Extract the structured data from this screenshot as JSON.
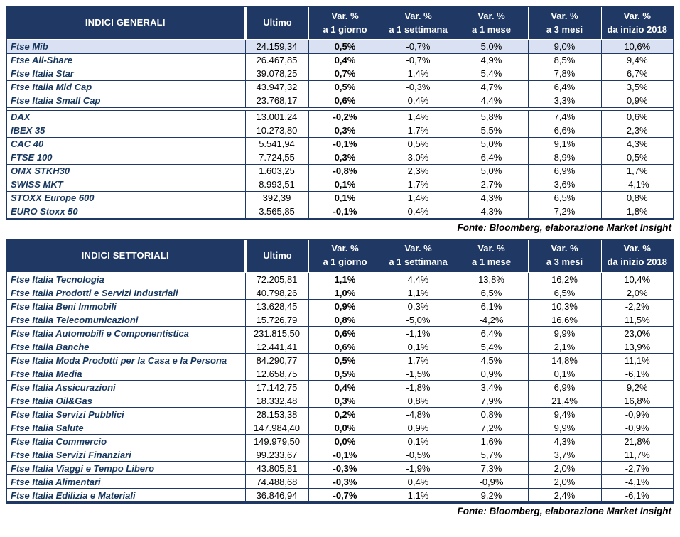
{
  "source_note": "Fonte: Bloomberg, elaborazione Market Insight",
  "colors": {
    "header_bg": "#1F3864",
    "border": "#1F3864",
    "highlight_row": "#D9E1F2",
    "index_name_text": "#17375E"
  },
  "columns": {
    "ultimo": "Ultimo",
    "var": [
      {
        "l1": "Var. %",
        "l2": "a 1 giorno"
      },
      {
        "l1": "Var. %",
        "l2": "a 1 settimana"
      },
      {
        "l1": "Var. %",
        "l2": "a 1 mese"
      },
      {
        "l1": "Var. %",
        "l2": "a 3 mesi"
      },
      {
        "l1": "Var. %",
        "l2": "da inizio 2018"
      }
    ]
  },
  "general": {
    "title": "INDICI GENERALI",
    "italy_rows": [
      {
        "name": "Ftse Mib",
        "ultimo": "24.159,34",
        "values": [
          "0,5%",
          "-0,7%",
          "5,0%",
          "9,0%",
          "10,6%"
        ],
        "highlight": true
      },
      {
        "name": "Ftse All-Share",
        "ultimo": "26.467,85",
        "values": [
          "0,4%",
          "-0,7%",
          "4,9%",
          "8,5%",
          "9,4%"
        ]
      },
      {
        "name": "Ftse Italia Star",
        "ultimo": "39.078,25",
        "values": [
          "0,7%",
          "1,4%",
          "5,4%",
          "7,8%",
          "6,7%"
        ]
      },
      {
        "name": "Ftse Italia Mid Cap",
        "ultimo": "43.947,32",
        "values": [
          "0,5%",
          "-0,3%",
          "4,7%",
          "6,4%",
          "3,5%"
        ]
      },
      {
        "name": "Ftse Italia Small Cap",
        "ultimo": "23.768,17",
        "values": [
          "0,6%",
          "0,4%",
          "4,4%",
          "3,3%",
          "0,9%"
        ]
      }
    ],
    "europe_rows": [
      {
        "name": "DAX",
        "ultimo": "13.001,24",
        "values": [
          "-0,2%",
          "1,4%",
          "5,8%",
          "7,4%",
          "0,6%"
        ]
      },
      {
        "name": "IBEX 35",
        "ultimo": "10.273,80",
        "values": [
          "0,3%",
          "1,7%",
          "5,5%",
          "6,6%",
          "2,3%"
        ]
      },
      {
        "name": "CAC 40",
        "ultimo": "5.541,94",
        "values": [
          "-0,1%",
          "0,5%",
          "5,0%",
          "9,1%",
          "4,3%"
        ]
      },
      {
        "name": "FTSE 100",
        "ultimo": "7.724,55",
        "values": [
          "0,3%",
          "3,0%",
          "6,4%",
          "8,9%",
          "0,5%"
        ]
      },
      {
        "name": "OMX STKH30",
        "ultimo": "1.603,25",
        "values": [
          "-0,8%",
          "2,3%",
          "5,0%",
          "6,9%",
          "1,7%"
        ]
      },
      {
        "name": "SWISS MKT",
        "ultimo": "8.993,51",
        "values": [
          "0,1%",
          "1,7%",
          "2,7%",
          "3,6%",
          "-4,1%"
        ]
      },
      {
        "name": "STOXX Europe 600",
        "ultimo": "392,39",
        "values": [
          "0,1%",
          "1,4%",
          "4,3%",
          "6,5%",
          "0,8%"
        ]
      },
      {
        "name": "EURO Stoxx 50",
        "ultimo": "3.565,85",
        "values": [
          "-0,1%",
          "0,4%",
          "4,3%",
          "7,2%",
          "1,8%"
        ]
      }
    ]
  },
  "sector": {
    "title": "INDICI SETTORIALI",
    "rows": [
      {
        "name": "Ftse Italia Tecnologia",
        "ultimo": "72.205,81",
        "values": [
          "1,1%",
          "4,4%",
          "13,8%",
          "16,2%",
          "10,4%"
        ]
      },
      {
        "name": "Ftse Italia Prodotti e Servizi Industriali",
        "ultimo": "40.798,26",
        "values": [
          "1,0%",
          "1,1%",
          "6,5%",
          "6,5%",
          "2,0%"
        ]
      },
      {
        "name": "Ftse Italia Beni Immobili",
        "ultimo": "13.628,45",
        "values": [
          "0,9%",
          "0,3%",
          "6,1%",
          "10,3%",
          "-2,2%"
        ]
      },
      {
        "name": "Ftse Italia Telecomunicazioni",
        "ultimo": "15.726,79",
        "values": [
          "0,8%",
          "-5,0%",
          "-4,2%",
          "16,6%",
          "11,5%"
        ]
      },
      {
        "name": "Ftse Italia Automobili e Componentistica",
        "ultimo": "231.815,50",
        "values": [
          "0,6%",
          "-1,1%",
          "6,4%",
          "9,9%",
          "23,0%"
        ]
      },
      {
        "name": "Ftse Italia Banche",
        "ultimo": "12.441,41",
        "values": [
          "0,6%",
          "0,1%",
          "5,4%",
          "2,1%",
          "13,9%"
        ]
      },
      {
        "name": "Ftse Italia Moda Prodotti per la Casa e la Persona",
        "ultimo": "84.290,77",
        "values": [
          "0,5%",
          "1,7%",
          "4,5%",
          "14,8%",
          "11,1%"
        ]
      },
      {
        "name": "Ftse Italia Media",
        "ultimo": "12.658,75",
        "values": [
          "0,5%",
          "-1,5%",
          "0,9%",
          "0,1%",
          "-6,1%"
        ]
      },
      {
        "name": "Ftse Italia Assicurazioni",
        "ultimo": "17.142,75",
        "values": [
          "0,4%",
          "-1,8%",
          "3,4%",
          "6,9%",
          "9,2%"
        ]
      },
      {
        "name": "Ftse Italia Oil&Gas",
        "ultimo": "18.332,48",
        "values": [
          "0,3%",
          "0,8%",
          "7,9%",
          "21,4%",
          "16,8%"
        ]
      },
      {
        "name": "Ftse Italia Servizi Pubblici",
        "ultimo": "28.153,38",
        "values": [
          "0,2%",
          "-4,8%",
          "0,8%",
          "9,4%",
          "-0,9%"
        ]
      },
      {
        "name": "Ftse Italia Salute",
        "ultimo": "147.984,40",
        "values": [
          "0,0%",
          "0,9%",
          "7,2%",
          "9,9%",
          "-0,9%"
        ]
      },
      {
        "name": "Ftse Italia Commercio",
        "ultimo": "149.979,50",
        "values": [
          "0,0%",
          "0,1%",
          "1,6%",
          "4,3%",
          "21,8%"
        ]
      },
      {
        "name": "Ftse Italia Servizi Finanziari",
        "ultimo": "99.233,67",
        "values": [
          "-0,1%",
          "-0,5%",
          "5,7%",
          "3,7%",
          "11,7%"
        ]
      },
      {
        "name": "Ftse Italia Viaggi e Tempo Libero",
        "ultimo": "43.805,81",
        "values": [
          "-0,3%",
          "-1,9%",
          "7,3%",
          "2,0%",
          "-2,7%"
        ]
      },
      {
        "name": "Ftse Italia Alimentari",
        "ultimo": "74.488,68",
        "values": [
          "-0,3%",
          "0,4%",
          "-0,9%",
          "2,0%",
          "-4,1%"
        ]
      },
      {
        "name": "Ftse Italia Edilizia e Materiali",
        "ultimo": "36.846,94",
        "values": [
          "-0,7%",
          "1,1%",
          "9,2%",
          "2,4%",
          "-6,1%"
        ]
      }
    ]
  }
}
